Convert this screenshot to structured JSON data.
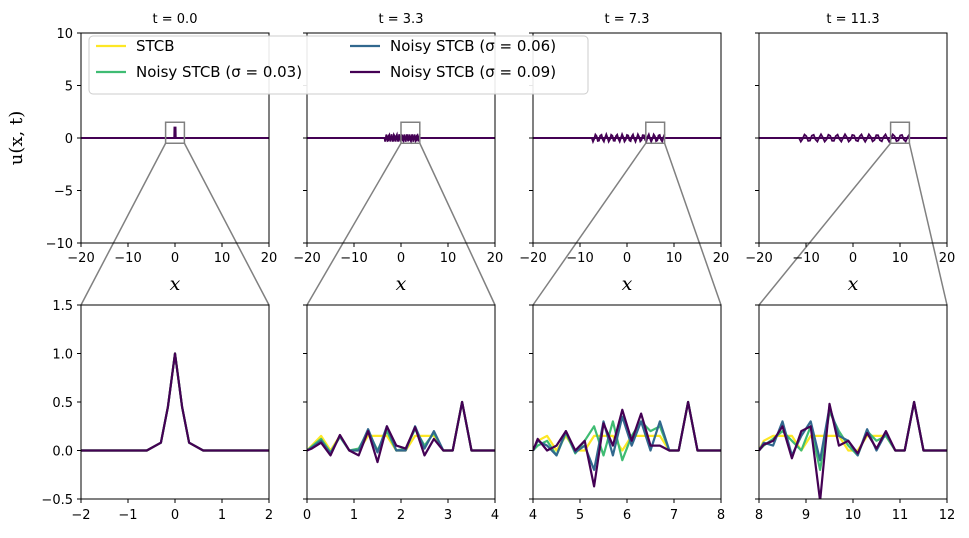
{
  "chart_data": {
    "type": "line",
    "ylabel": "u(x, t)",
    "xlabel": "x",
    "series_names": [
      "STCB",
      "Noisy STCB (σ = 0.03)",
      "Noisy STCB (σ = 0.06)",
      "Noisy STCB (σ = 0.09)"
    ],
    "colors": [
      "#fde725",
      "#3fbc73",
      "#31688e",
      "#440154"
    ],
    "top_row": {
      "xlim": [
        -20,
        20
      ],
      "ylim": [
        -10,
        10
      ],
      "xticks": [
        "−20",
        "−10",
        "0",
        "10",
        "20"
      ],
      "yticks": [
        "−10",
        "−5",
        "0",
        "5",
        "10"
      ],
      "panels": [
        {
          "title": "t = 0.0",
          "inset_x": [
            -2,
            2
          ],
          "inset_y": [
            -0.5,
            1.5
          ],
          "noise_extent": [
            -1,
            1
          ],
          "peak": 1.0
        },
        {
          "title": "t = 3.3",
          "inset_x": [
            0,
            4
          ],
          "inset_y": [
            -0.5,
            1.5
          ],
          "noise_extent": [
            -3.5,
            4
          ],
          "peak": 0.5
        },
        {
          "title": "t = 7.3",
          "inset_x": [
            4,
            8
          ],
          "inset_y": [
            -0.5,
            1.5
          ],
          "noise_extent": [
            -7.5,
            8
          ],
          "peak": 0.5
        },
        {
          "title": "t = 11.3",
          "inset_x": [
            8,
            12
          ],
          "inset_y": [
            -0.5,
            1.5
          ],
          "noise_extent": [
            -11.5,
            12
          ],
          "peak": 0.5
        }
      ]
    },
    "bottom_row": {
      "ylim": [
        -0.5,
        1.5
      ],
      "yticks": [
        "−0.5",
        "0.0",
        "0.5",
        "1.0",
        "1.5"
      ],
      "panels": [
        {
          "xlim": [
            -2,
            2
          ],
          "xticks": [
            "−2",
            "−1",
            "0",
            "1",
            "2"
          ],
          "series": [
            {
              "name": "STCB",
              "x": [
                -2,
                -0.6,
                -0.3,
                -0.15,
                0,
                0.15,
                0.3,
                0.6,
                2
              ],
              "y": [
                0,
                0,
                0.08,
                0.45,
                1.0,
                0.45,
                0.08,
                0,
                0
              ]
            },
            {
              "name": "Noisy STCB (σ = 0.03)",
              "x": [
                -2,
                -0.6,
                -0.3,
                -0.15,
                0,
                0.15,
                0.3,
                0.6,
                2
              ],
              "y": [
                0,
                0,
                0.08,
                0.45,
                1.0,
                0.45,
                0.08,
                0,
                0
              ]
            },
            {
              "name": "Noisy STCB (σ = 0.06)",
              "x": [
                -2,
                -0.6,
                -0.3,
                -0.15,
                0,
                0.15,
                0.3,
                0.6,
                2
              ],
              "y": [
                0,
                0,
                0.08,
                0.45,
                1.0,
                0.45,
                0.08,
                0,
                0
              ]
            },
            {
              "name": "Noisy STCB (σ = 0.09)",
              "x": [
                -2,
                -0.6,
                -0.3,
                -0.15,
                0,
                0.15,
                0.3,
                0.6,
                2
              ],
              "y": [
                0,
                0,
                0.08,
                0.45,
                1.0,
                0.45,
                0.08,
                0,
                0
              ]
            }
          ]
        },
        {
          "xlim": [
            0,
            4
          ],
          "xticks": [
            "0",
            "1",
            "2",
            "3",
            "4"
          ],
          "series": [
            {
              "name": "STCB",
              "x": [
                0,
                0.1,
                0.3,
                0.5,
                0.7,
                0.9,
                1.1,
                1.3,
                1.5,
                1.7,
                1.9,
                2.1,
                2.3,
                2.5,
                2.7,
                2.9,
                3.1,
                3.3,
                3.5,
                3.7,
                4.0
              ],
              "y": [
                0,
                0.05,
                0.15,
                0.0,
                0.15,
                0.0,
                0.0,
                0.15,
                0.15,
                0.15,
                0.0,
                0.0,
                0.15,
                0.15,
                0.15,
                0.0,
                0.0,
                0.5,
                0.0,
                0.0,
                0.0
              ]
            },
            {
              "name": "Noisy STCB (σ = 0.03)",
              "x": [
                0,
                0.1,
                0.3,
                0.5,
                0.7,
                0.9,
                1.1,
                1.3,
                1.5,
                1.7,
                1.9,
                2.1,
                2.3,
                2.5,
                2.7,
                2.9,
                3.1,
                3.3,
                3.5,
                3.7,
                4.0
              ],
              "y": [
                0,
                0.04,
                0.12,
                -0.02,
                0.14,
                0.0,
                0.02,
                0.2,
                0.0,
                0.2,
                0.0,
                0.02,
                0.22,
                0.05,
                0.18,
                0.0,
                0.0,
                0.5,
                0.0,
                0.0,
                0.0
              ]
            },
            {
              "name": "Noisy STCB (σ = 0.06)",
              "x": [
                0,
                0.1,
                0.3,
                0.5,
                0.7,
                0.9,
                1.1,
                1.3,
                1.5,
                1.7,
                1.9,
                2.1,
                2.3,
                2.5,
                2.7,
                2.9,
                3.1,
                3.3,
                3.5,
                3.7,
                4.0
              ],
              "y": [
                0,
                0.03,
                0.1,
                -0.03,
                0.15,
                0.0,
                0.0,
                0.22,
                -0.02,
                0.25,
                0.0,
                0.0,
                0.25,
                0.02,
                0.2,
                0.0,
                0.0,
                0.5,
                0.0,
                0.0,
                0.0
              ]
            },
            {
              "name": "Noisy STCB (σ = 0.09)",
              "x": [
                0,
                0.1,
                0.3,
                0.5,
                0.7,
                0.9,
                1.1,
                1.3,
                1.5,
                1.7,
                1.9,
                2.1,
                2.3,
                2.5,
                2.7,
                2.9,
                3.1,
                3.3,
                3.5,
                3.7,
                4.0
              ],
              "y": [
                0,
                0.02,
                0.08,
                -0.05,
                0.16,
                0.0,
                -0.05,
                0.2,
                -0.12,
                0.25,
                0.05,
                0.02,
                0.24,
                -0.05,
                0.12,
                0.0,
                0.0,
                0.5,
                0.0,
                0.0,
                0.0
              ]
            }
          ]
        },
        {
          "xlim": [
            4,
            8
          ],
          "xticks": [
            "4",
            "5",
            "6",
            "7",
            "8"
          ],
          "series": [
            {
              "name": "STCB",
              "x": [
                4.0,
                4.1,
                4.3,
                4.5,
                4.7,
                4.9,
                5.1,
                5.3,
                5.5,
                5.7,
                5.9,
                6.1,
                6.3,
                6.5,
                6.7,
                6.9,
                7.1,
                7.3,
                7.5,
                7.7,
                8.0
              ],
              "y": [
                0,
                0.1,
                0.15,
                0.0,
                0.15,
                0.0,
                0.0,
                0.15,
                0.15,
                0.15,
                0.0,
                0.15,
                0.15,
                0.15,
                0.15,
                0.0,
                0.0,
                0.5,
                0.0,
                0.0,
                0.0
              ]
            },
            {
              "name": "Noisy STCB (σ = 0.03)",
              "x": [
                4.0,
                4.1,
                4.3,
                4.5,
                4.7,
                4.9,
                5.1,
                5.3,
                5.5,
                5.7,
                5.9,
                6.1,
                6.3,
                6.5,
                6.7,
                6.9,
                7.1,
                7.3,
                7.5,
                7.7,
                8.0
              ],
              "y": [
                0,
                0.05,
                0.1,
                -0.05,
                0.18,
                -0.03,
                0.1,
                0.25,
                -0.05,
                0.3,
                -0.1,
                0.15,
                0.3,
                0.2,
                0.25,
                0.0,
                0.0,
                0.5,
                0.0,
                0.0,
                0.0
              ]
            },
            {
              "name": "Noisy STCB (σ = 0.06)",
              "x": [
                4.0,
                4.1,
                4.3,
                4.5,
                4.7,
                4.9,
                5.1,
                5.3,
                5.5,
                5.7,
                5.9,
                6.1,
                6.3,
                6.5,
                6.7,
                6.9,
                7.1,
                7.3,
                7.5,
                7.7,
                8.0
              ],
              "y": [
                0,
                0.1,
                0.05,
                -0.05,
                0.2,
                -0.02,
                0.05,
                -0.2,
                0.3,
                -0.05,
                0.35,
                0.05,
                0.3,
                0.0,
                0.3,
                0.0,
                0.0,
                0.5,
                0.0,
                0.0,
                0.0
              ]
            },
            {
              "name": "Noisy STCB (σ = 0.09)",
              "x": [
                4.0,
                4.1,
                4.3,
                4.5,
                4.7,
                4.9,
                5.1,
                5.3,
                5.5,
                5.7,
                5.9,
                6.1,
                6.3,
                6.5,
                6.7,
                6.9,
                7.1,
                7.3,
                7.5,
                7.7,
                8.0
              ],
              "y": [
                0,
                0.12,
                0.0,
                0.05,
                0.2,
                0.0,
                0.1,
                -0.37,
                0.28,
                0.05,
                0.42,
                0.1,
                0.38,
                0.05,
                0.05,
                0.0,
                0.0,
                0.5,
                0.0,
                0.0,
                0.0
              ]
            }
          ]
        },
        {
          "xlim": [
            8,
            12
          ],
          "xticks": [
            "8",
            "9",
            "10",
            "11",
            "12"
          ],
          "series": [
            {
              "name": "STCB",
              "x": [
                8.0,
                8.1,
                8.3,
                8.5,
                8.7,
                8.9,
                9.1,
                9.3,
                9.5,
                9.7,
                9.9,
                10.1,
                10.3,
                10.5,
                10.7,
                10.9,
                11.1,
                11.3,
                11.5,
                11.7,
                12.0
              ],
              "y": [
                0,
                0.1,
                0.15,
                0.15,
                0.15,
                0.0,
                0.15,
                0.15,
                0.15,
                0.15,
                0.0,
                0.0,
                0.15,
                0.15,
                0.15,
                0.0,
                0.0,
                0.5,
                0.0,
                0.0,
                0.0
              ]
            },
            {
              "name": "Noisy STCB (σ = 0.03)",
              "x": [
                8.0,
                8.1,
                8.3,
                8.5,
                8.7,
                8.9,
                9.1,
                9.3,
                9.5,
                9.7,
                9.9,
                10.1,
                10.3,
                10.5,
                10.7,
                10.9,
                11.1,
                11.3,
                11.5,
                11.7,
                12.0
              ],
              "y": [
                0,
                0.05,
                0.12,
                0.2,
                0.1,
                0.0,
                0.25,
                -0.2,
                0.4,
                0.2,
                0.05,
                -0.05,
                0.2,
                0.1,
                0.15,
                0.0,
                0.0,
                0.5,
                0.0,
                0.0,
                0.0
              ]
            },
            {
              "name": "Noisy STCB (σ = 0.06)",
              "x": [
                8.0,
                8.1,
                8.3,
                8.5,
                8.7,
                8.9,
                9.1,
                9.3,
                9.5,
                9.7,
                9.9,
                10.1,
                10.3,
                10.5,
                10.7,
                10.9,
                11.1,
                11.3,
                11.5,
                11.7,
                12.0
              ],
              "y": [
                0,
                0.08,
                0.05,
                0.3,
                -0.05,
                0.15,
                0.3,
                -0.1,
                0.45,
                0.15,
                0.1,
                -0.05,
                0.22,
                0.0,
                0.18,
                0.0,
                0.0,
                0.5,
                0.0,
                0.0,
                0.0
              ]
            },
            {
              "name": "Noisy STCB (σ = 0.09)",
              "x": [
                8.0,
                8.1,
                8.3,
                8.5,
                8.7,
                8.9,
                9.1,
                9.3,
                9.5,
                9.7,
                9.9,
                10.1,
                10.3,
                10.5,
                10.7,
                10.9,
                11.1,
                11.3,
                11.5,
                11.7,
                12.0
              ],
              "y": [
                0,
                0.06,
                0.1,
                0.25,
                -0.08,
                0.2,
                0.25,
                -0.52,
                0.48,
                0.05,
                0.1,
                -0.03,
                0.18,
                0.02,
                0.2,
                0.0,
                0.0,
                0.5,
                0.0,
                0.0,
                0.0
              ]
            }
          ]
        }
      ]
    }
  }
}
